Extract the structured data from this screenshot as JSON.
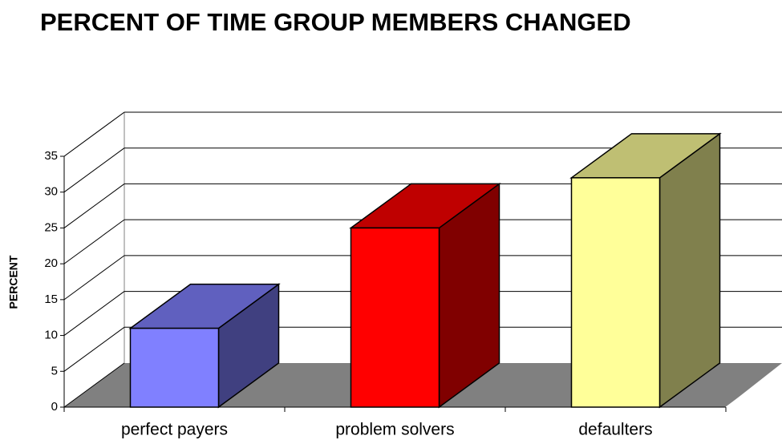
{
  "chart_data": {
    "type": "bar3d",
    "title": "PERCENT OF TIME GROUP MEMBERS CHANGED",
    "y_label": "PERCENT",
    "categories": [
      "perfect payers",
      "problem solvers",
      "defaulters"
    ],
    "values": [
      11,
      25,
      32
    ],
    "colors": [
      "#8080ff",
      "#ff0000",
      "#ffff99"
    ],
    "ylim": [
      0,
      35
    ],
    "yticks": [
      0,
      5,
      10,
      15,
      20,
      25,
      30,
      35
    ],
    "grid": true
  }
}
